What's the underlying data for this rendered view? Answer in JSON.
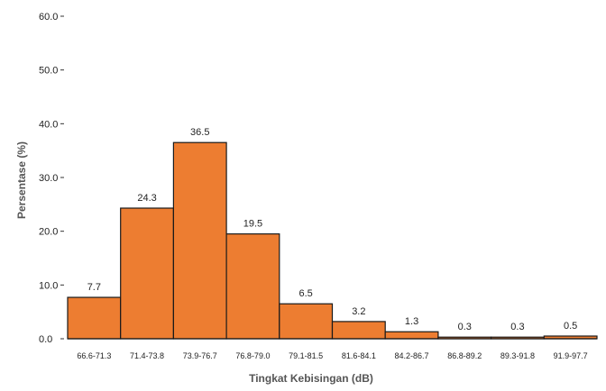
{
  "chart_data": {
    "type": "bar",
    "title": "",
    "xlabel": "Tingkat Kebisingan (dB)",
    "ylabel": "Persentase (%)",
    "ylim": [
      0,
      60
    ],
    "yticks": [
      "0.0",
      "10.0",
      "20.0",
      "30.0",
      "40.0",
      "50.0",
      "60.0"
    ],
    "categories": [
      "66.6-71.3",
      "71.4-73.8",
      "73.9-76.7",
      "76.8-79.0",
      "79.1-81.5",
      "81.6-84.1",
      "84.2-86.7",
      "86.8-89.2",
      "89.3-91.8",
      "91.9-97.7"
    ],
    "values": [
      7.7,
      24.3,
      36.5,
      19.5,
      6.5,
      3.2,
      1.3,
      0.3,
      0.3,
      0.5
    ],
    "value_labels": [
      "7.7",
      "24.3",
      "36.5",
      "19.5",
      "6.5",
      "3.2",
      "1.3",
      "0.3",
      "0.3",
      "0.5"
    ],
    "grid": false,
    "legend": "none",
    "bar_color": "#ED7D31",
    "bar_edge_color": "#1a1a1a"
  }
}
